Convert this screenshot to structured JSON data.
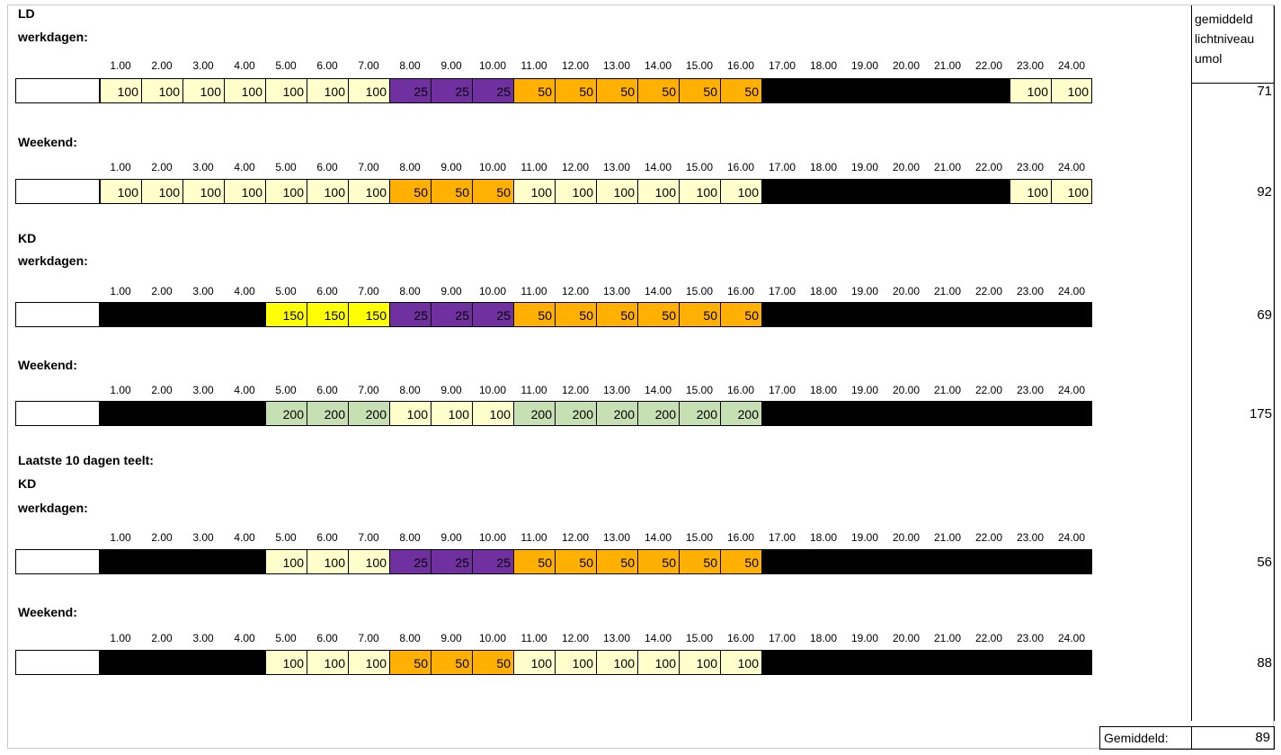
{
  "labels": {
    "ld": "LD",
    "werkdagen": "werkdagen:",
    "weekend": "Weekend:",
    "kd": "KD",
    "laatste": "Laatste 10 dagen teelt:"
  },
  "hours": [
    "1.00",
    "2.00",
    "3.00",
    "4.00",
    "5.00",
    "6.00",
    "7.00",
    "8.00",
    "9.00",
    "10.00",
    "11.00",
    "12.00",
    "13.00",
    "14.00",
    "15.00",
    "16.00",
    "17.00",
    "18.00",
    "19.00",
    "20.00",
    "21.00",
    "22.00",
    "23.00",
    "24.00"
  ],
  "header": {
    "line1": "gemiddeld",
    "line2": "lichtniveau",
    "line3": "umol"
  },
  "colors": {
    "c100": "#ffffcc",
    "c50": "#ffb000",
    "c25": "#7030a0",
    "c150": "#ffff00",
    "c200": "#c6e0b4",
    "dark": "#000000"
  },
  "rows": [
    {
      "id": "ld-werkdagen",
      "avg": "71",
      "cells": [
        "100",
        "100",
        "100",
        "100",
        "100",
        "100",
        "100",
        "25",
        "25",
        "25",
        "50",
        "50",
        "50",
        "50",
        "50",
        "50",
        "",
        "",
        "",
        "",
        "",
        "",
        "100",
        "100"
      ]
    },
    {
      "id": "ld-weekend",
      "avg": "92",
      "cells": [
        "100",
        "100",
        "100",
        "100",
        "100",
        "100",
        "100",
        "50",
        "50",
        "50",
        "100",
        "100",
        "100",
        "100",
        "100",
        "100",
        "",
        "",
        "",
        "",
        "",
        "",
        "100",
        "100"
      ]
    },
    {
      "id": "kd-werkdagen",
      "avg": "69",
      "cells": [
        "",
        "",
        "",
        "",
        "150",
        "150",
        "150",
        "25",
        "25",
        "25",
        "50",
        "50",
        "50",
        "50",
        "50",
        "50",
        "",
        "",
        "",
        "",
        "",
        "",
        "",
        ""
      ]
    },
    {
      "id": "kd-weekend",
      "avg": "175",
      "cells": [
        "",
        "",
        "",
        "",
        "200",
        "200",
        "200",
        "100",
        "100",
        "100",
        "200",
        "200",
        "200",
        "200",
        "200",
        "200",
        "",
        "",
        "",
        "",
        "",
        "",
        "",
        ""
      ]
    },
    {
      "id": "laatste-werkdagen",
      "avg": "56",
      "cells": [
        "",
        "",
        "",
        "",
        "100",
        "100",
        "100",
        "25",
        "25",
        "25",
        "50",
        "50",
        "50",
        "50",
        "50",
        "50",
        "",
        "",
        "",
        "",
        "",
        "",
        "",
        ""
      ]
    },
    {
      "id": "laatste-weekend",
      "avg": "88",
      "cells": [
        "",
        "",
        "",
        "",
        "100",
        "100",
        "100",
        "50",
        "50",
        "50",
        "100",
        "100",
        "100",
        "100",
        "100",
        "100",
        "",
        "",
        "",
        "",
        "",
        "",
        "",
        ""
      ]
    }
  ],
  "total": {
    "label": "Gemiddeld:",
    "value": "89"
  }
}
